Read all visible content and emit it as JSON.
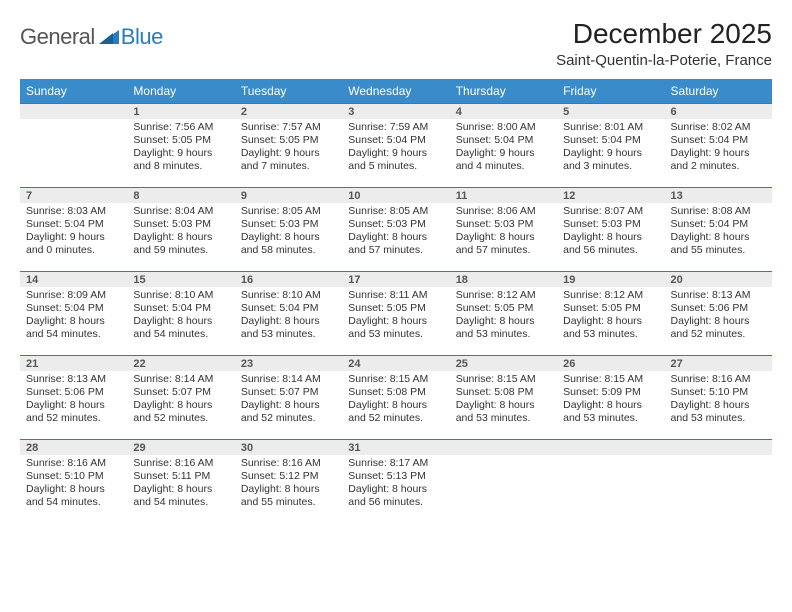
{
  "logo": {
    "text1": "General",
    "text2": "Blue"
  },
  "title": "December 2025",
  "location": "Saint-Quentin-la-Poterie, France",
  "colors": {
    "header_bg": "#3a8bc9",
    "header_text": "#ffffff",
    "daynum_bg": "#ececec",
    "daynum_border_top": "#2b7bbf",
    "body_text": "#333333",
    "logo_gray": "#555555",
    "logo_blue": "#2b7bbf",
    "page_bg": "#ffffff"
  },
  "typography": {
    "title_fontsize": 28,
    "location_fontsize": 15,
    "dayheader_fontsize": 12,
    "cell_fontsize": 10.5,
    "daynum_fontsize": 11
  },
  "day_headers": [
    "Sunday",
    "Monday",
    "Tuesday",
    "Wednesday",
    "Thursday",
    "Friday",
    "Saturday"
  ],
  "weeks": [
    [
      {
        "num": "",
        "l1": "",
        "l2": "",
        "l3": "",
        "l4": ""
      },
      {
        "num": "1",
        "l1": "Sunrise: 7:56 AM",
        "l2": "Sunset: 5:05 PM",
        "l3": "Daylight: 9 hours",
        "l4": "and 8 minutes."
      },
      {
        "num": "2",
        "l1": "Sunrise: 7:57 AM",
        "l2": "Sunset: 5:05 PM",
        "l3": "Daylight: 9 hours",
        "l4": "and 7 minutes."
      },
      {
        "num": "3",
        "l1": "Sunrise: 7:59 AM",
        "l2": "Sunset: 5:04 PM",
        "l3": "Daylight: 9 hours",
        "l4": "and 5 minutes."
      },
      {
        "num": "4",
        "l1": "Sunrise: 8:00 AM",
        "l2": "Sunset: 5:04 PM",
        "l3": "Daylight: 9 hours",
        "l4": "and 4 minutes."
      },
      {
        "num": "5",
        "l1": "Sunrise: 8:01 AM",
        "l2": "Sunset: 5:04 PM",
        "l3": "Daylight: 9 hours",
        "l4": "and 3 minutes."
      },
      {
        "num": "6",
        "l1": "Sunrise: 8:02 AM",
        "l2": "Sunset: 5:04 PM",
        "l3": "Daylight: 9 hours",
        "l4": "and 2 minutes."
      }
    ],
    [
      {
        "num": "7",
        "l1": "Sunrise: 8:03 AM",
        "l2": "Sunset: 5:04 PM",
        "l3": "Daylight: 9 hours",
        "l4": "and 0 minutes."
      },
      {
        "num": "8",
        "l1": "Sunrise: 8:04 AM",
        "l2": "Sunset: 5:03 PM",
        "l3": "Daylight: 8 hours",
        "l4": "and 59 minutes."
      },
      {
        "num": "9",
        "l1": "Sunrise: 8:05 AM",
        "l2": "Sunset: 5:03 PM",
        "l3": "Daylight: 8 hours",
        "l4": "and 58 minutes."
      },
      {
        "num": "10",
        "l1": "Sunrise: 8:05 AM",
        "l2": "Sunset: 5:03 PM",
        "l3": "Daylight: 8 hours",
        "l4": "and 57 minutes."
      },
      {
        "num": "11",
        "l1": "Sunrise: 8:06 AM",
        "l2": "Sunset: 5:03 PM",
        "l3": "Daylight: 8 hours",
        "l4": "and 57 minutes."
      },
      {
        "num": "12",
        "l1": "Sunrise: 8:07 AM",
        "l2": "Sunset: 5:03 PM",
        "l3": "Daylight: 8 hours",
        "l4": "and 56 minutes."
      },
      {
        "num": "13",
        "l1": "Sunrise: 8:08 AM",
        "l2": "Sunset: 5:04 PM",
        "l3": "Daylight: 8 hours",
        "l4": "and 55 minutes."
      }
    ],
    [
      {
        "num": "14",
        "l1": "Sunrise: 8:09 AM",
        "l2": "Sunset: 5:04 PM",
        "l3": "Daylight: 8 hours",
        "l4": "and 54 minutes."
      },
      {
        "num": "15",
        "l1": "Sunrise: 8:10 AM",
        "l2": "Sunset: 5:04 PM",
        "l3": "Daylight: 8 hours",
        "l4": "and 54 minutes."
      },
      {
        "num": "16",
        "l1": "Sunrise: 8:10 AM",
        "l2": "Sunset: 5:04 PM",
        "l3": "Daylight: 8 hours",
        "l4": "and 53 minutes."
      },
      {
        "num": "17",
        "l1": "Sunrise: 8:11 AM",
        "l2": "Sunset: 5:05 PM",
        "l3": "Daylight: 8 hours",
        "l4": "and 53 minutes."
      },
      {
        "num": "18",
        "l1": "Sunrise: 8:12 AM",
        "l2": "Sunset: 5:05 PM",
        "l3": "Daylight: 8 hours",
        "l4": "and 53 minutes."
      },
      {
        "num": "19",
        "l1": "Sunrise: 8:12 AM",
        "l2": "Sunset: 5:05 PM",
        "l3": "Daylight: 8 hours",
        "l4": "and 53 minutes."
      },
      {
        "num": "20",
        "l1": "Sunrise: 8:13 AM",
        "l2": "Sunset: 5:06 PM",
        "l3": "Daylight: 8 hours",
        "l4": "and 52 minutes."
      }
    ],
    [
      {
        "num": "21",
        "l1": "Sunrise: 8:13 AM",
        "l2": "Sunset: 5:06 PM",
        "l3": "Daylight: 8 hours",
        "l4": "and 52 minutes."
      },
      {
        "num": "22",
        "l1": "Sunrise: 8:14 AM",
        "l2": "Sunset: 5:07 PM",
        "l3": "Daylight: 8 hours",
        "l4": "and 52 minutes."
      },
      {
        "num": "23",
        "l1": "Sunrise: 8:14 AM",
        "l2": "Sunset: 5:07 PM",
        "l3": "Daylight: 8 hours",
        "l4": "and 52 minutes."
      },
      {
        "num": "24",
        "l1": "Sunrise: 8:15 AM",
        "l2": "Sunset: 5:08 PM",
        "l3": "Daylight: 8 hours",
        "l4": "and 52 minutes."
      },
      {
        "num": "25",
        "l1": "Sunrise: 8:15 AM",
        "l2": "Sunset: 5:08 PM",
        "l3": "Daylight: 8 hours",
        "l4": "and 53 minutes."
      },
      {
        "num": "26",
        "l1": "Sunrise: 8:15 AM",
        "l2": "Sunset: 5:09 PM",
        "l3": "Daylight: 8 hours",
        "l4": "and 53 minutes."
      },
      {
        "num": "27",
        "l1": "Sunrise: 8:16 AM",
        "l2": "Sunset: 5:10 PM",
        "l3": "Daylight: 8 hours",
        "l4": "and 53 minutes."
      }
    ],
    [
      {
        "num": "28",
        "l1": "Sunrise: 8:16 AM",
        "l2": "Sunset: 5:10 PM",
        "l3": "Daylight: 8 hours",
        "l4": "and 54 minutes."
      },
      {
        "num": "29",
        "l1": "Sunrise: 8:16 AM",
        "l2": "Sunset: 5:11 PM",
        "l3": "Daylight: 8 hours",
        "l4": "and 54 minutes."
      },
      {
        "num": "30",
        "l1": "Sunrise: 8:16 AM",
        "l2": "Sunset: 5:12 PM",
        "l3": "Daylight: 8 hours",
        "l4": "and 55 minutes."
      },
      {
        "num": "31",
        "l1": "Sunrise: 8:17 AM",
        "l2": "Sunset: 5:13 PM",
        "l3": "Daylight: 8 hours",
        "l4": "and 56 minutes."
      },
      {
        "num": "",
        "l1": "",
        "l2": "",
        "l3": "",
        "l4": ""
      },
      {
        "num": "",
        "l1": "",
        "l2": "",
        "l3": "",
        "l4": ""
      },
      {
        "num": "",
        "l1": "",
        "l2": "",
        "l3": "",
        "l4": ""
      }
    ]
  ]
}
